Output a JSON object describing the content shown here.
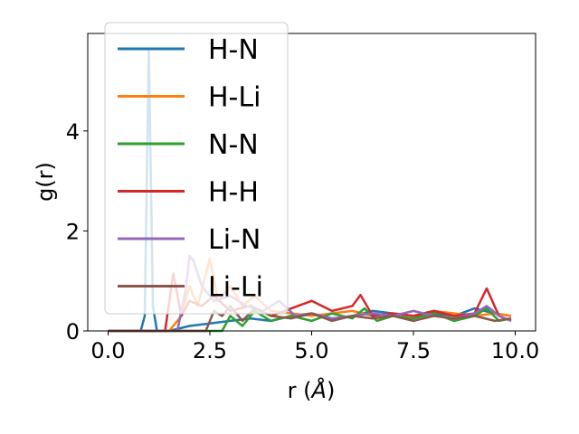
{
  "chart_data": {
    "type": "line",
    "xlabel_main": "r (",
    "xlabel_unit": "Å",
    "xlabel_close": ")",
    "ylabel": "g(r)",
    "xlim": [
      -0.5,
      10.5
    ],
    "ylim": [
      0,
      5.95
    ],
    "x_ticks": [
      0.0,
      2.5,
      5.0,
      7.5,
      10.0
    ],
    "x_tick_labels": [
      "0.0",
      "2.5",
      "5.0",
      "7.5",
      "10.0"
    ],
    "y_ticks": [
      0,
      2,
      4
    ],
    "y_tick_labels": [
      "0",
      "2",
      "4"
    ],
    "grid": false,
    "legend_position": "top-left",
    "series": [
      {
        "name": "H-N",
        "color": "#1f77b4",
        "x": [
          0.0,
          0.8,
          0.9,
          1.0,
          1.1,
          1.2,
          1.5,
          2.0,
          2.5,
          3.0,
          3.5,
          4.0,
          4.5,
          5.0,
          5.5,
          6.0,
          6.5,
          7.0,
          7.5,
          8.0,
          8.5,
          9.0,
          9.5,
          9.9
        ],
        "y": [
          0.0,
          0.0,
          0.3,
          5.65,
          0.5,
          0.0,
          0.0,
          0.1,
          0.15,
          0.2,
          0.25,
          0.2,
          0.3,
          0.35,
          0.25,
          0.3,
          0.4,
          0.35,
          0.3,
          0.35,
          0.3,
          0.45,
          0.35,
          0.3
        ]
      },
      {
        "name": "H-Li",
        "color": "#ff7f0e",
        "x": [
          0.0,
          1.5,
          1.8,
          2.0,
          2.2,
          2.5,
          2.7,
          3.0,
          3.3,
          3.6,
          4.0,
          4.5,
          5.0,
          5.5,
          6.0,
          6.5,
          7.0,
          7.5,
          8.0,
          8.5,
          9.0,
          9.5,
          9.9
        ],
        "y": [
          0.0,
          0.0,
          0.3,
          0.9,
          0.5,
          1.45,
          0.6,
          0.9,
          0.5,
          0.7,
          0.4,
          0.35,
          0.3,
          0.35,
          0.4,
          0.3,
          0.35,
          0.3,
          0.4,
          0.35,
          0.3,
          0.35,
          0.3
        ]
      },
      {
        "name": "N-N",
        "color": "#2ca02c",
        "x": [
          0.0,
          2.8,
          3.0,
          3.3,
          3.6,
          4.0,
          4.5,
          5.0,
          5.5,
          6.0,
          6.3,
          6.6,
          7.0,
          7.5,
          8.0,
          8.5,
          9.0,
          9.3,
          9.6,
          9.9
        ],
        "y": [
          0.0,
          0.0,
          0.3,
          0.1,
          0.4,
          0.2,
          0.3,
          0.2,
          0.35,
          0.25,
          0.45,
          0.2,
          0.3,
          0.25,
          0.35,
          0.2,
          0.3,
          0.45,
          0.2,
          0.25
        ]
      },
      {
        "name": "H-H",
        "color": "#d62728",
        "x": [
          0.0,
          1.4,
          1.6,
          1.8,
          2.0,
          2.3,
          2.6,
          3.0,
          3.5,
          4.0,
          4.5,
          5.0,
          5.5,
          6.0,
          6.2,
          6.5,
          7.0,
          7.5,
          8.0,
          8.5,
          9.0,
          9.3,
          9.6,
          9.9
        ],
        "y": [
          0.0,
          0.0,
          1.15,
          0.3,
          0.6,
          0.5,
          0.7,
          0.4,
          0.5,
          0.3,
          0.45,
          0.6,
          0.4,
          0.5,
          0.72,
          0.3,
          0.35,
          0.3,
          0.4,
          0.3,
          0.35,
          0.85,
          0.3,
          0.2
        ]
      },
      {
        "name": "Li-N",
        "color": "#9467bd",
        "x": [
          0.0,
          1.7,
          1.9,
          2.0,
          2.1,
          2.3,
          2.6,
          3.0,
          3.4,
          3.8,
          4.2,
          4.6,
          5.0,
          5.5,
          6.0,
          6.5,
          7.0,
          7.5,
          8.0,
          8.5,
          9.0,
          9.3,
          9.6,
          9.9
        ],
        "y": [
          0.0,
          0.0,
          0.8,
          1.5,
          1.4,
          0.9,
          0.6,
          0.7,
          0.5,
          0.4,
          0.6,
          0.3,
          0.35,
          0.25,
          0.3,
          0.35,
          0.3,
          0.4,
          0.3,
          0.25,
          0.35,
          0.5,
          0.3,
          0.2
        ]
      },
      {
        "name": "Li-Li",
        "color": "#8c564b",
        "x": [
          0.0,
          2.4,
          2.6,
          2.8,
          3.0,
          3.3,
          3.6,
          4.0,
          4.5,
          5.0,
          5.5,
          6.0,
          6.5,
          7.0,
          7.5,
          8.0,
          8.5,
          9.0,
          9.5,
          9.9
        ],
        "y": [
          0.0,
          0.0,
          0.4,
          0.3,
          0.5,
          0.2,
          0.45,
          0.3,
          0.25,
          0.35,
          0.2,
          0.3,
          0.25,
          0.3,
          0.2,
          0.3,
          0.25,
          0.3,
          0.2,
          0.25
        ]
      }
    ]
  }
}
